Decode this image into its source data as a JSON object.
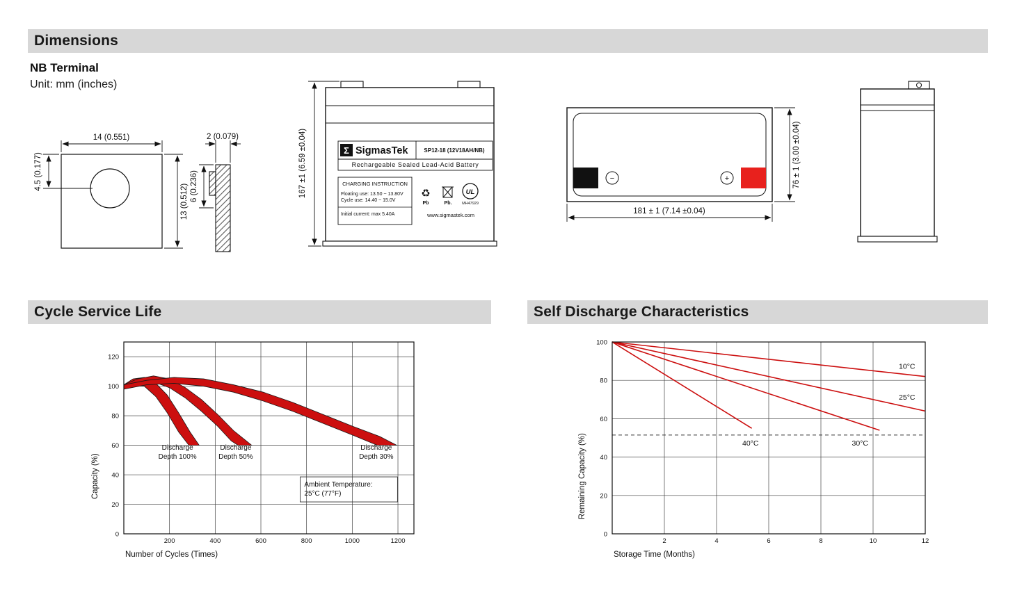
{
  "sections": {
    "dimensions": "Dimensions",
    "cycle_service_life": "Cycle Service Life",
    "self_discharge": "Self Discharge Characteristics"
  },
  "dimensions_panel": {
    "subtitle": "NB Terminal",
    "unit": "Unit: mm (inches)",
    "terminal_front": {
      "width": "14 (0.551)",
      "hole_offset": "4.5 (0.177)",
      "height": "13 (0.512)"
    },
    "terminal_side": {
      "thickness": "2 (0.079)",
      "tab_height": "6 (0.236)"
    },
    "front_view": {
      "brand_sigma": "Σ",
      "brand": "SigmasTek",
      "model": "SP12-18 (12V18AH/NB)",
      "type_line": "Rechargeable Sealed Lead-Acid Battery",
      "charging_title": "CHARGING INSTRUCTION",
      "charging_line1": "Floating use: 13.50 ~ 13.80V",
      "charging_line2": "Cycle use: 14.40 ~ 15.0V",
      "charging_line3": "Initial current: max 5.40A",
      "pb1": "Pb",
      "pb2": "Pb.",
      "ul_mark": "UL",
      "mh": "MH47929",
      "website": "www.sigmastek.com",
      "height_dim": "167 ±1 (6.59 ±0.04)"
    },
    "top_view": {
      "width_dim": "181 ± 1 (7.14 ±0.04)",
      "depth_dim": "76 ± 1 (3.00 ±0.04)",
      "minus": "−",
      "plus": "+"
    }
  },
  "icons": {
    "recycle": "♻"
  },
  "chart_data": [
    {
      "type": "area",
      "title": "Cycle Service Life",
      "xlabel": "Number of Cycles (Times)",
      "ylabel": "Capacity (%)",
      "xlim": [
        0,
        1270
      ],
      "ylim": [
        0,
        130
      ],
      "xticks": [
        200,
        400,
        600,
        800,
        1000,
        1200
      ],
      "yticks": [
        0,
        20,
        40,
        60,
        80,
        100,
        120
      ],
      "grid": true,
      "legend": "none",
      "series_color": "#cc0f0f",
      "series": [
        {
          "name": "Discharge Depth 100%",
          "upper": [
            [
              0,
              101
            ],
            [
              40,
              105
            ],
            [
              90,
              106
            ],
            [
              140,
              102
            ],
            [
              190,
              94
            ],
            [
              240,
              82
            ],
            [
              290,
              69
            ],
            [
              330,
              60
            ]
          ],
          "lower": [
            [
              0,
              98
            ],
            [
              40,
              101
            ],
            [
              90,
              100
            ],
            [
              140,
              93
            ],
            [
              190,
              82
            ],
            [
              240,
              69
            ],
            [
              285,
              60
            ]
          ]
        },
        {
          "name": "Discharge Depth 50%",
          "upper": [
            [
              0,
              101
            ],
            [
              60,
              105
            ],
            [
              130,
              107
            ],
            [
              200,
              105
            ],
            [
              270,
              99
            ],
            [
              340,
              91
            ],
            [
              410,
              81
            ],
            [
              480,
              70
            ],
            [
              560,
              60
            ]
          ],
          "lower": [
            [
              0,
              98
            ],
            [
              60,
              102
            ],
            [
              130,
              103
            ],
            [
              200,
              99
            ],
            [
              270,
              92
            ],
            [
              340,
              83
            ],
            [
              410,
              73
            ],
            [
              470,
              63
            ],
            [
              500,
              60
            ]
          ]
        },
        {
          "name": "Discharge Depth 30%",
          "upper": [
            [
              0,
              101
            ],
            [
              100,
              104
            ],
            [
              220,
              106
            ],
            [
              350,
              105
            ],
            [
              480,
              101
            ],
            [
              610,
              96
            ],
            [
              740,
              89
            ],
            [
              870,
              81
            ],
            [
              1000,
              73
            ],
            [
              1120,
              66
            ],
            [
              1195,
              60
            ]
          ],
          "lower": [
            [
              0,
              98
            ],
            [
              100,
              101
            ],
            [
              220,
              102
            ],
            [
              350,
              100
            ],
            [
              480,
              96
            ],
            [
              610,
              90
            ],
            [
              740,
              83
            ],
            [
              870,
              75
            ],
            [
              1000,
              67
            ],
            [
              1110,
              60
            ]
          ]
        }
      ],
      "annotations": [
        {
          "lines": [
            "Discharge",
            "Depth 100%"
          ],
          "x": 235,
          "y": 57,
          "boxed": false
        },
        {
          "lines": [
            "Discharge",
            "Depth 50%"
          ],
          "x": 490,
          "y": 57,
          "boxed": false
        },
        {
          "lines": [
            "Discharge",
            "Depth 30%"
          ],
          "x": 1105,
          "y": 57,
          "boxed": false
        },
        {
          "lines": [
            "Ambient Temperature:",
            "25°C (77°F)"
          ],
          "x": 985,
          "y": 32,
          "boxed": true
        }
      ]
    },
    {
      "type": "line",
      "title": "Self Discharge Characteristics",
      "xlabel": "Storage Time (Months)",
      "ylabel": "Remaining Capacity (%)",
      "xlim": [
        0,
        12
      ],
      "ylim": [
        0,
        100
      ],
      "xticks": [
        2,
        4,
        6,
        8,
        10,
        12
      ],
      "yticks": [
        0,
        20,
        40,
        60,
        80,
        100
      ],
      "grid": true,
      "legend": "inline-labels",
      "series_color": "#cc0f0f",
      "series": [
        {
          "name": "10°C",
          "points": [
            [
              0,
              100
            ],
            [
              12,
              82
            ]
          ],
          "label_x": 11.3,
          "label_y": 86
        },
        {
          "name": "25°C",
          "points": [
            [
              0,
              100
            ],
            [
              12,
              64
            ]
          ],
          "label_x": 11.3,
          "label_y": 70
        },
        {
          "name": "30°C",
          "points": [
            [
              0,
              100
            ],
            [
              10.25,
              54
            ]
          ],
          "label_x": 9.5,
          "label_y": 46
        },
        {
          "name": "40°C",
          "points": [
            [
              0,
              100
            ],
            [
              5.35,
              55
            ]
          ],
          "label_x": 5.3,
          "label_y": 46
        }
      ],
      "dashed_line_y": 51.5
    }
  ]
}
